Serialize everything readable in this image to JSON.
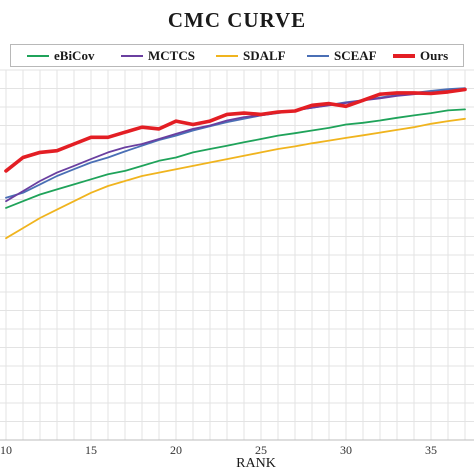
{
  "chart_data": {
    "type": "line",
    "title": "CMC CURVE",
    "xlabel": "RANK",
    "ylabel": "",
    "xlim": [
      10,
      37
    ],
    "xticks": [
      10,
      15,
      20,
      25,
      30,
      35
    ],
    "ylim": [
      0,
      100
    ],
    "grid": true,
    "legend_position": "top",
    "x": [
      10,
      11,
      12,
      13,
      14,
      15,
      16,
      17,
      18,
      19,
      20,
      21,
      22,
      23,
      24,
      25,
      26,
      27,
      28,
      29,
      30,
      31,
      32,
      33,
      34,
      35,
      36,
      37
    ],
    "series": [
      {
        "name": "eBiCov",
        "color": "#1fa35a",
        "width": 1.8,
        "values": [
          69,
          71,
          73,
          74.5,
          76,
          77.5,
          79,
          80,
          81.5,
          83,
          84,
          85.5,
          86.5,
          87.5,
          88.5,
          89.5,
          90.5,
          91.2,
          92,
          92.8,
          93.8,
          94.3,
          95,
          95.8,
          96.5,
          97.2,
          98,
          98.3
        ]
      },
      {
        "name": "MCTCS",
        "color": "#6a3fa0",
        "width": 1.8,
        "values": [
          71,
          74,
          77,
          79.5,
          81.5,
          83.5,
          85.5,
          87,
          88,
          89.5,
          91,
          92.5,
          93.5,
          95,
          96,
          96.5,
          97.3,
          98,
          98.8,
          99.5,
          100.2,
          101,
          101.6,
          102.3,
          102.8,
          103.3,
          103.8,
          104
        ]
      },
      {
        "name": "SDALF",
        "color": "#f0b41e",
        "width": 1.8,
        "values": [
          60,
          63,
          66,
          68.5,
          71,
          73.5,
          75.5,
          77,
          78.5,
          79.5,
          80.5,
          81.5,
          82.5,
          83.5,
          84.5,
          85.5,
          86.5,
          87.3,
          88.2,
          89,
          89.8,
          90.6,
          91.4,
          92.2,
          93,
          94,
          94.8,
          95.5
        ]
      },
      {
        "name": "SCEAF",
        "color": "#4a6fb5",
        "width": 1.8,
        "values": [
          72,
          73.5,
          76,
          78.5,
          80.5,
          82.5,
          84,
          85.8,
          87.5,
          89.2,
          90.5,
          92,
          93.3,
          94.5,
          95.5,
          96.5,
          97.2,
          98,
          98.8,
          99.6,
          100.4,
          101,
          101.8,
          102.5,
          103.2,
          103.8,
          104.3,
          104.6
        ]
      },
      {
        "name": "Ours",
        "color": "#e31e24",
        "width": 3.6,
        "values": [
          80,
          84,
          85.5,
          86,
          88,
          90,
          90,
          91.5,
          93,
          92.5,
          94.8,
          93.8,
          94.8,
          96.8,
          97.2,
          96.8,
          97.5,
          97.8,
          99.5,
          100,
          99.2,
          101,
          102.8,
          103.2,
          103.2,
          103,
          103.5,
          104.2
        ]
      }
    ]
  }
}
